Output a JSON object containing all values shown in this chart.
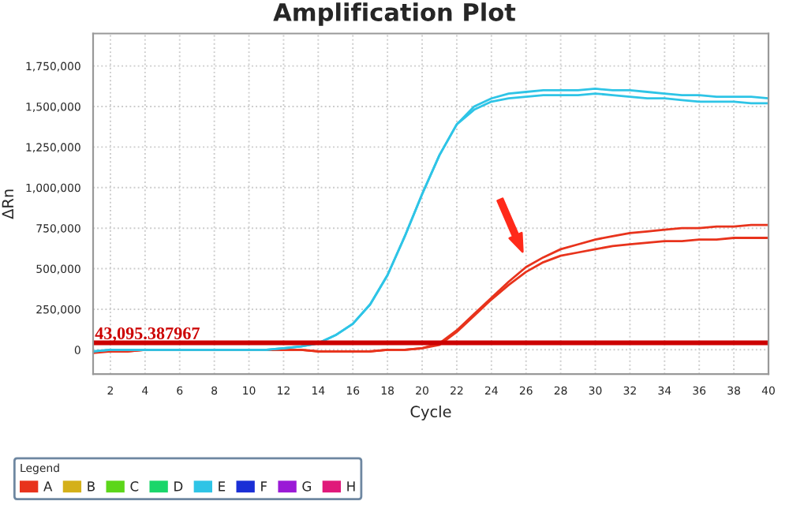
{
  "chart_data": {
    "type": "line",
    "title": "Amplification Plot",
    "xlabel": "Cycle",
    "ylabel": "ΔRn",
    "legend_title": "Legend",
    "x": [
      1,
      2,
      3,
      4,
      5,
      6,
      7,
      8,
      9,
      10,
      11,
      12,
      13,
      14,
      15,
      16,
      17,
      18,
      19,
      20,
      21,
      22,
      23,
      24,
      25,
      26,
      27,
      28,
      29,
      30,
      31,
      32,
      33,
      34,
      35,
      36,
      37,
      38,
      39,
      40
    ],
    "series": [
      {
        "name": "A",
        "color": "#e8331c",
        "values": [
          -20000,
          -10000,
          -10000,
          0,
          0,
          0,
          0,
          0,
          0,
          0,
          0,
          0,
          0,
          -10000,
          -10000,
          -10000,
          -10000,
          0,
          0,
          10000,
          40000,
          120000,
          220000,
          320000,
          420000,
          510000,
          570000,
          620000,
          650000,
          680000,
          700000,
          720000,
          730000,
          740000,
          750000,
          750000,
          760000,
          760000,
          770000,
          770000
        ]
      },
      {
        "color": "#e8331c",
        "values": [
          -10000,
          -10000,
          -10000,
          0,
          0,
          0,
          0,
          0,
          0,
          0,
          0,
          0,
          0,
          -10000,
          -10000,
          -10000,
          -10000,
          0,
          0,
          10000,
          30000,
          110000,
          210000,
          310000,
          400000,
          480000,
          540000,
          580000,
          600000,
          620000,
          640000,
          650000,
          660000,
          670000,
          670000,
          680000,
          680000,
          690000,
          690000,
          690000
        ]
      },
      {
        "name": "B",
        "color": "#d4b019",
        "values": [
          null,
          null,
          null,
          null,
          null,
          null,
          null,
          null,
          null,
          null,
          null,
          null,
          null,
          null,
          null,
          null,
          null,
          null,
          null,
          null,
          null,
          null,
          null,
          null,
          null,
          null,
          null,
          null,
          null,
          null,
          null,
          null,
          null,
          null,
          null,
          null,
          null,
          null,
          null,
          null
        ]
      },
      {
        "name": "C",
        "color": "#5cd61a",
        "values": [
          null,
          null,
          null,
          null,
          null,
          null,
          null,
          null,
          null,
          null,
          null,
          null,
          null,
          null,
          null,
          null,
          null,
          null,
          null,
          null,
          null,
          null,
          null,
          null,
          null,
          null,
          null,
          null,
          null,
          null,
          null,
          null,
          null,
          null,
          null,
          null,
          null,
          null,
          null,
          null
        ]
      },
      {
        "name": "D",
        "color": "#1ad66a",
        "values": [
          null,
          null,
          null,
          null,
          null,
          null,
          null,
          null,
          null,
          null,
          null,
          null,
          null,
          null,
          null,
          null,
          null,
          null,
          null,
          null,
          null,
          null,
          null,
          null,
          null,
          null,
          null,
          null,
          null,
          null,
          null,
          null,
          null,
          null,
          null,
          null,
          null,
          null,
          null,
          null
        ]
      },
      {
        "name": "E",
        "color": "#2ec4e6",
        "values": [
          -10000,
          0,
          0,
          0,
          0,
          0,
          0,
          0,
          0,
          0,
          0,
          10000,
          20000,
          40000,
          90000,
          160000,
          280000,
          460000,
          700000,
          960000,
          1200000,
          1390000,
          1500000,
          1550000,
          1580000,
          1590000,
          1600000,
          1600000,
          1600000,
          1610000,
          1600000,
          1600000,
          1590000,
          1580000,
          1570000,
          1570000,
          1560000,
          1560000,
          1560000,
          1550000
        ]
      },
      {
        "color": "#2ec4e6",
        "values": [
          -10000,
          0,
          0,
          0,
          0,
          0,
          0,
          0,
          0,
          0,
          0,
          10000,
          20000,
          40000,
          90000,
          160000,
          280000,
          460000,
          700000,
          960000,
          1200000,
          1390000,
          1480000,
          1530000,
          1550000,
          1560000,
          1570000,
          1570000,
          1570000,
          1580000,
          1570000,
          1560000,
          1550000,
          1550000,
          1540000,
          1530000,
          1530000,
          1530000,
          1520000,
          1520000
        ]
      },
      {
        "name": "F",
        "color": "#1a2fd6",
        "values": [
          null,
          null,
          null,
          null,
          null,
          null,
          null,
          null,
          null,
          null,
          null,
          null,
          null,
          null,
          null,
          null,
          null,
          null,
          null,
          null,
          null,
          null,
          null,
          null,
          null,
          null,
          null,
          null,
          null,
          null,
          null,
          null,
          null,
          null,
          null,
          null,
          null,
          null,
          null,
          null
        ]
      },
      {
        "name": "G",
        "color": "#9a1ad6",
        "values": [
          null,
          null,
          null,
          null,
          null,
          null,
          null,
          null,
          null,
          null,
          null,
          null,
          null,
          null,
          null,
          null,
          null,
          null,
          null,
          null,
          null,
          null,
          null,
          null,
          null,
          null,
          null,
          null,
          null,
          null,
          null,
          null,
          null,
          null,
          null,
          null,
          null,
          null,
          null,
          null
        ]
      },
      {
        "name": "H",
        "color": "#e0197a",
        "values": [
          null,
          null,
          null,
          null,
          null,
          null,
          null,
          null,
          null,
          null,
          null,
          null,
          null,
          null,
          null,
          null,
          null,
          null,
          null,
          null,
          null,
          null,
          null,
          null,
          null,
          null,
          null,
          null,
          null,
          null,
          null,
          null,
          null,
          null,
          null,
          null,
          null,
          null,
          null,
          null
        ]
      }
    ],
    "ref_lines": [
      {
        "axis": "y",
        "value": 43095.387967,
        "label": "43,095.387967",
        "color": "#cc0000",
        "line_style": "solid"
      }
    ],
    "xlim": [
      1,
      40
    ],
    "xticks": [
      2,
      4,
      6,
      8,
      10,
      12,
      14,
      16,
      18,
      20,
      22,
      24,
      26,
      28,
      30,
      32,
      34,
      36,
      38,
      40
    ],
    "ylim": [
      -150000,
      1950000
    ],
    "yticks": [
      {
        "value": 0,
        "label": "0"
      },
      {
        "value": 250000,
        "label": "250,000"
      },
      {
        "value": 500000,
        "label": "500,000"
      },
      {
        "value": 750000,
        "label": "750,000"
      },
      {
        "value": 1000000,
        "label": "1,000,000"
      },
      {
        "value": 1250000,
        "label": "1,250,000"
      },
      {
        "value": 1500000,
        "label": "1,500,000"
      },
      {
        "value": 1750000,
        "label": "1,750,000"
      }
    ],
    "grid": true,
    "legend": "bottom",
    "marker": "none",
    "line_style": "solid"
  }
}
